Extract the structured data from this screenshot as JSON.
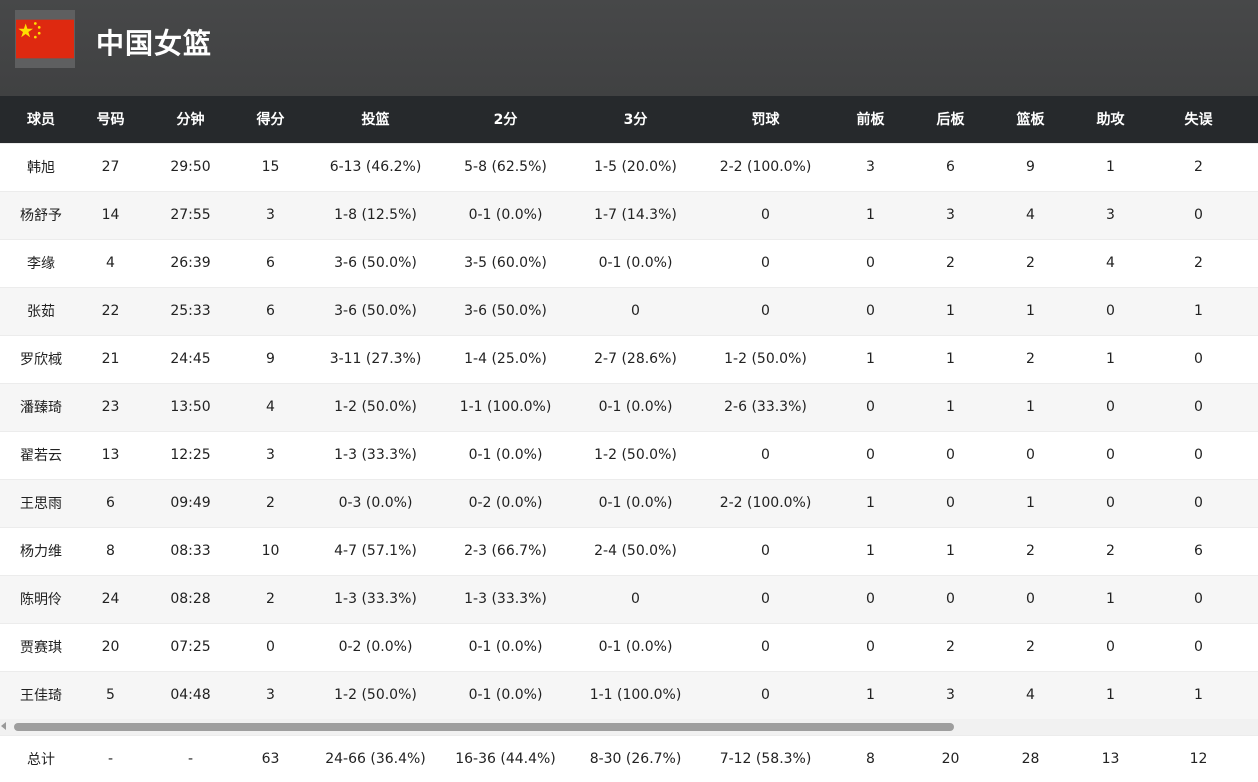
{
  "header": {
    "team_name": "中国女篮",
    "flag_icon": "china-flag-icon",
    "flag_colors": {
      "field": "#de2910",
      "stars": "#ffde00"
    }
  },
  "table": {
    "columns": [
      "球员",
      "号码",
      "分钟",
      "得分",
      "投篮",
      "2分",
      "3分",
      "罚球",
      "前板",
      "后板",
      "篮板",
      "助攻",
      "失误"
    ],
    "rows": [
      [
        "韩旭",
        "27",
        "29:50",
        "15",
        "6-13 (46.2%)",
        "5-8 (62.5%)",
        "1-5 (20.0%)",
        "2-2 (100.0%)",
        "3",
        "6",
        "9",
        "1",
        "2"
      ],
      [
        "杨舒予",
        "14",
        "27:55",
        "3",
        "1-8 (12.5%)",
        "0-1 (0.0%)",
        "1-7 (14.3%)",
        "0",
        "1",
        "3",
        "4",
        "3",
        "0"
      ],
      [
        "李缘",
        "4",
        "26:39",
        "6",
        "3-6 (50.0%)",
        "3-5 (60.0%)",
        "0-1 (0.0%)",
        "0",
        "0",
        "2",
        "2",
        "4",
        "2"
      ],
      [
        "张茹",
        "22",
        "25:33",
        "6",
        "3-6 (50.0%)",
        "3-6 (50.0%)",
        "0",
        "0",
        "0",
        "1",
        "1",
        "0",
        "1"
      ],
      [
        "罗欣棫",
        "21",
        "24:45",
        "9",
        "3-11 (27.3%)",
        "1-4 (25.0%)",
        "2-7 (28.6%)",
        "1-2 (50.0%)",
        "1",
        "1",
        "2",
        "1",
        "0"
      ],
      [
        "潘臻琦",
        "23",
        "13:50",
        "4",
        "1-2 (50.0%)",
        "1-1 (100.0%)",
        "0-1 (0.0%)",
        "2-6 (33.3%)",
        "0",
        "1",
        "1",
        "0",
        "0"
      ],
      [
        "翟若云",
        "13",
        "12:25",
        "3",
        "1-3 (33.3%)",
        "0-1 (0.0%)",
        "1-2 (50.0%)",
        "0",
        "0",
        "0",
        "0",
        "0",
        "0"
      ],
      [
        "王思雨",
        "6",
        "09:49",
        "2",
        "0-3 (0.0%)",
        "0-2 (0.0%)",
        "0-1 (0.0%)",
        "2-2 (100.0%)",
        "1",
        "0",
        "1",
        "0",
        "0"
      ],
      [
        "杨力维",
        "8",
        "08:33",
        "10",
        "4-7 (57.1%)",
        "2-3 (66.7%)",
        "2-4 (50.0%)",
        "0",
        "1",
        "1",
        "2",
        "2",
        "6"
      ],
      [
        "陈明伶",
        "24",
        "08:28",
        "2",
        "1-3 (33.3%)",
        "1-3 (33.3%)",
        "0",
        "0",
        "0",
        "0",
        "0",
        "1",
        "0"
      ],
      [
        "贾赛琪",
        "20",
        "07:25",
        "0",
        "0-2 (0.0%)",
        "0-1 (0.0%)",
        "0-1 (0.0%)",
        "0",
        "0",
        "2",
        "2",
        "0",
        "0"
      ],
      [
        "王佳琦",
        "5",
        "04:48",
        "3",
        "1-2 (50.0%)",
        "0-1 (0.0%)",
        "1-1 (100.0%)",
        "0",
        "1",
        "3",
        "4",
        "1",
        "1"
      ]
    ],
    "totals": [
      "总计",
      "-",
      "-",
      "63",
      "24-66 (36.4%)",
      "16-36 (44.4%)",
      "8-30 (26.7%)",
      "7-12 (58.3%)",
      "8",
      "20",
      "28",
      "13",
      "12"
    ]
  },
  "scrollbar": {
    "position": 0,
    "visible_fraction": 0.75
  }
}
